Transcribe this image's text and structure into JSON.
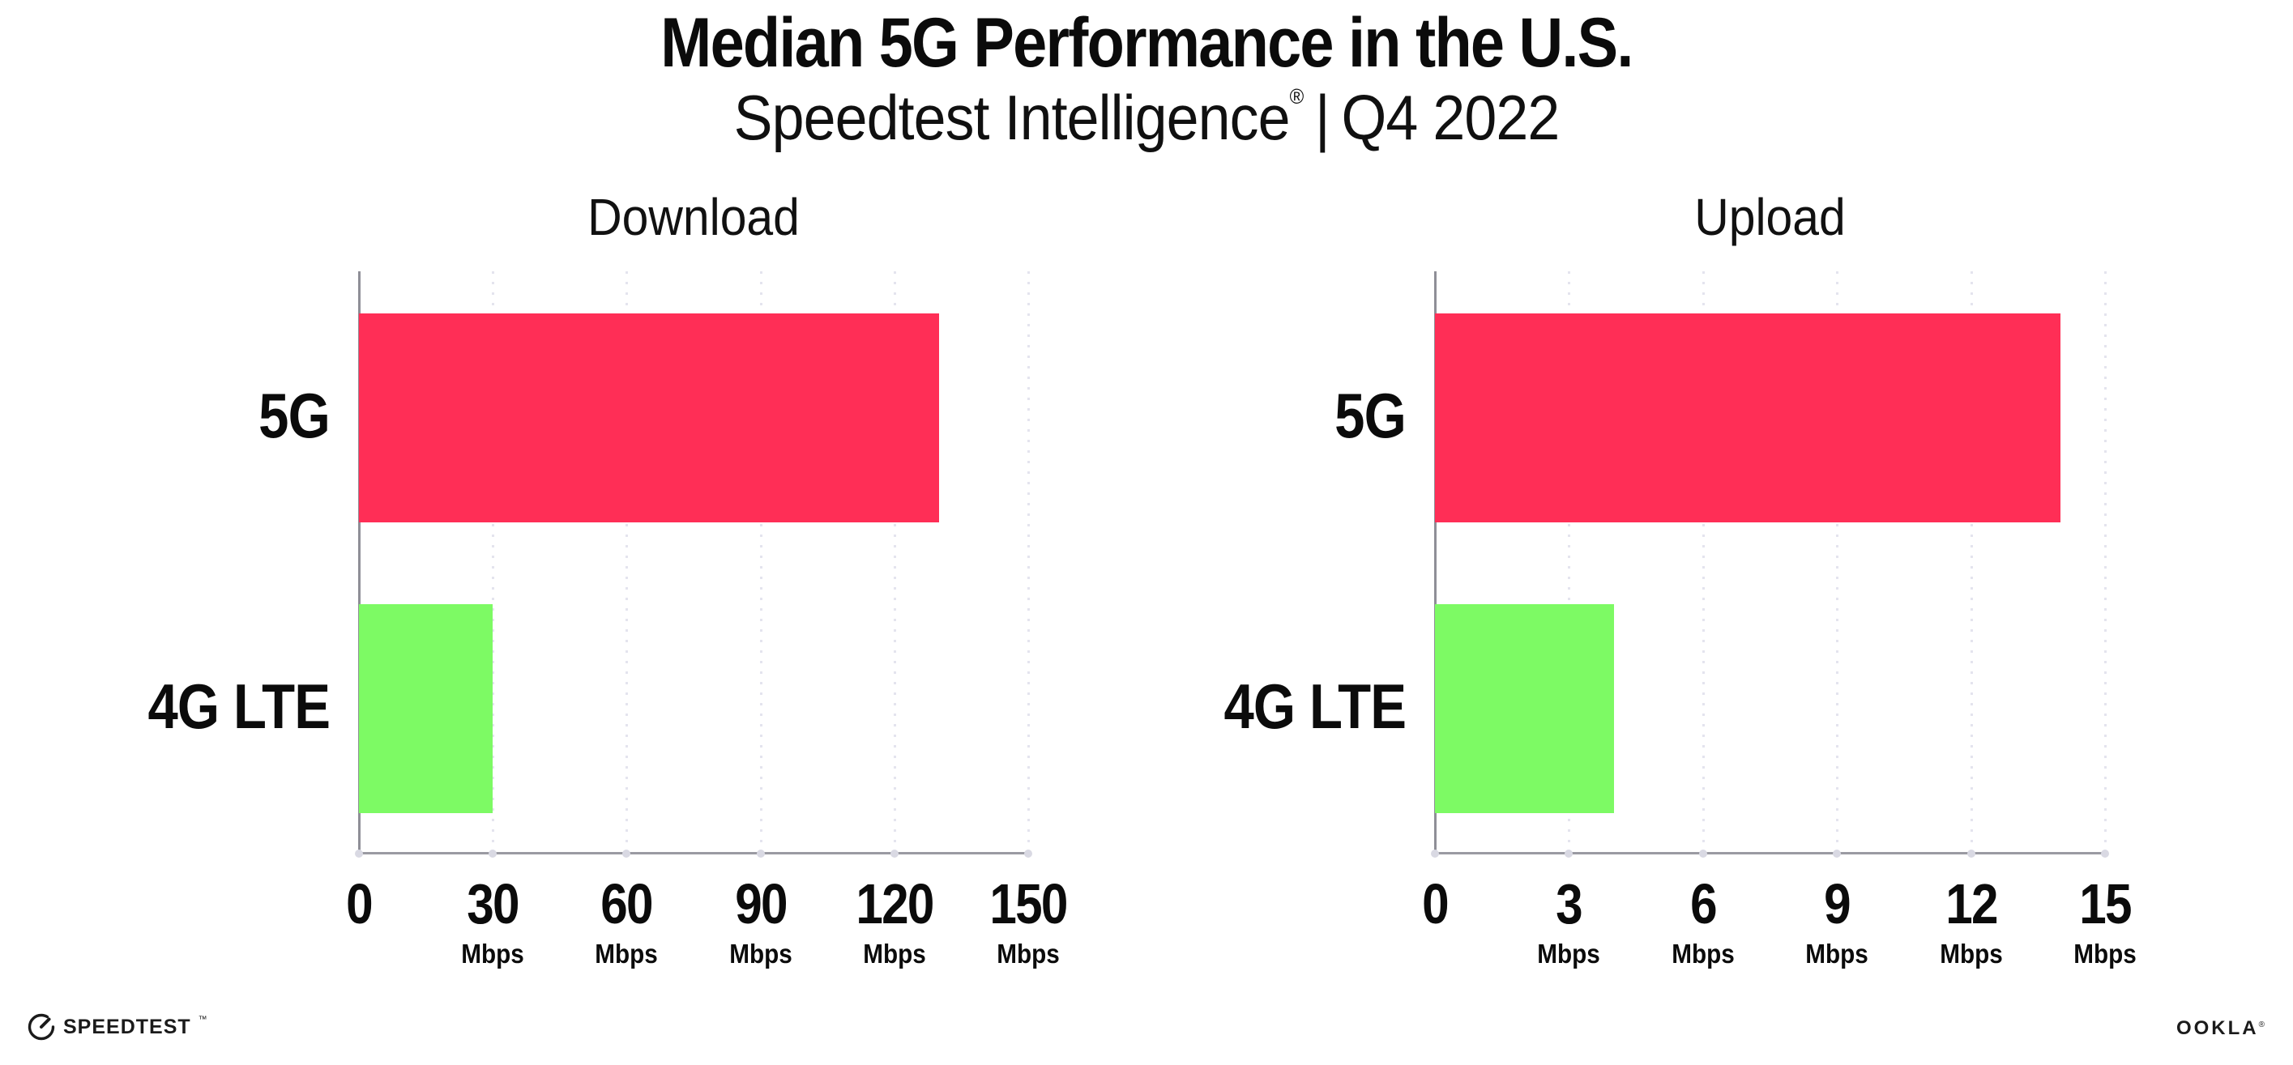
{
  "figure": {
    "title": "Median 5G Performance in the U.S.",
    "subtitle": {
      "brand": "Speedtest Intelligence",
      "registered_mark": "®",
      "separator": "|",
      "period": "Q4 2022"
    }
  },
  "chart_data": [
    {
      "type": "bar",
      "orientation": "horizontal",
      "title": "Download",
      "categories": [
        "5G",
        "4G LTE"
      ],
      "values": [
        130,
        30
      ],
      "unit": "Mbps",
      "xlim": [
        0,
        150
      ],
      "xticks": [
        0,
        30,
        60,
        90,
        120,
        150
      ],
      "xtick_unit_suffix": "Mbps",
      "grid": "vertical-dotted",
      "legend": "none",
      "bar_colors": [
        "#FF2E56",
        "#7DFA64"
      ]
    },
    {
      "type": "bar",
      "orientation": "horizontal",
      "title": "Upload",
      "categories": [
        "5G",
        "4G LTE"
      ],
      "values": [
        14,
        4
      ],
      "unit": "Mbps",
      "xlim": [
        0,
        15
      ],
      "xticks": [
        0,
        3,
        6,
        9,
        12,
        15
      ],
      "xtick_unit_suffix": "Mbps",
      "grid": "vertical-dotted",
      "legend": "none",
      "bar_colors": [
        "#FF2E56",
        "#7DFA64"
      ]
    }
  ],
  "footer": {
    "speedtest_wordmark": "SPEEDTEST",
    "speedtest_trademark": "™",
    "ookla_wordmark": "OOKLA",
    "ookla_registered": "®"
  },
  "colors": {
    "bar_5g": "#FF2E56",
    "bar_4g_lte": "#7DFA64",
    "axis_line": "#9A9AA2",
    "y_axis_line": "#8F8F97",
    "grid_dots": "#E4E4EE",
    "tick_dots": "#D9D9E3",
    "text": "#0B0B0B",
    "background": "#FFFFFF"
  }
}
